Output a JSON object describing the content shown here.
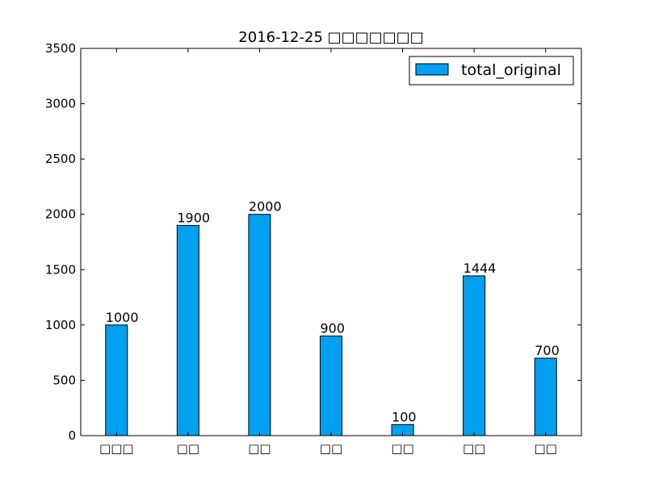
{
  "chart_data": {
    "type": "bar",
    "title": "2016-12-25 □□□□□□□",
    "categories": [
      "□□□",
      "□□",
      "□□",
      "□□",
      "□□",
      "□□",
      "□□"
    ],
    "series": [
      {
        "name": "total_original",
        "values": [
          1000,
          1900,
          2000,
          900,
          100,
          1444,
          700
        ]
      }
    ],
    "data_labels": [
      "1000",
      "1900",
      "2000",
      "900",
      "100",
      "1444",
      "700"
    ],
    "y_ticks": [
      0,
      500,
      1000,
      1500,
      2000,
      2500,
      3000,
      3500
    ],
    "ylim": [
      0,
      3500
    ],
    "grid": false,
    "legend_position": "top-right",
    "bar_color": "#00a0f0"
  }
}
